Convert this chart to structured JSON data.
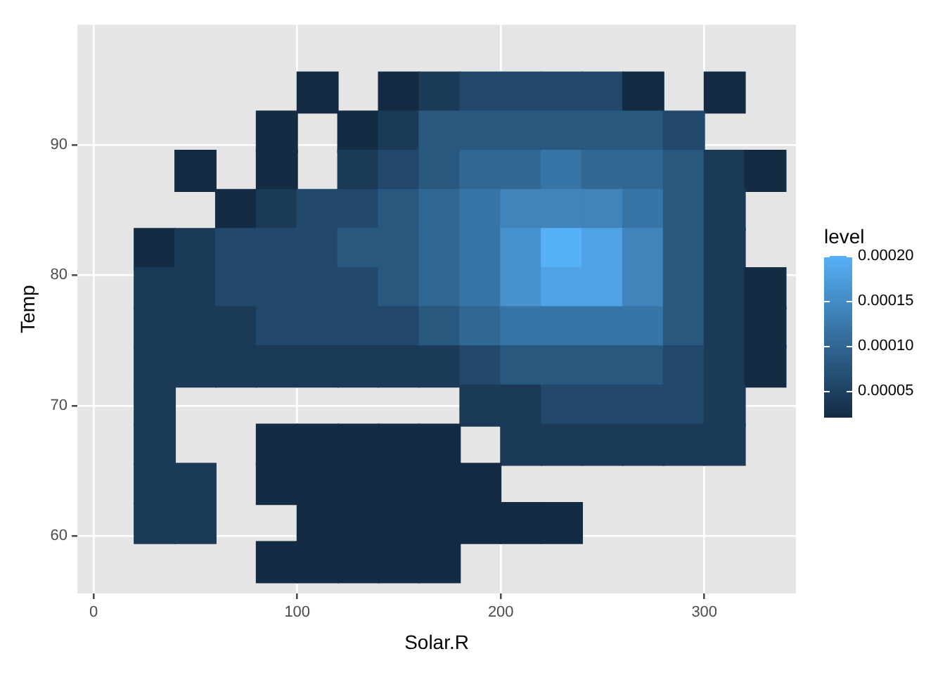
{
  "chart_data": {
    "type": "scatter",
    "xlabel": "Solar.R",
    "ylabel": "Temp",
    "clabel": "level",
    "marker": "square",
    "grid": true,
    "legend": false,
    "xlim": [
      -8,
      345
    ],
    "xticks": [
      0,
      100,
      200,
      300
    ],
    "ylim": [
      55.6,
      99.2
    ],
    "yticks": [
      60,
      70,
      80,
      90
    ],
    "clim": [
      2e-05,
      0.0002
    ],
    "cticks": [
      {
        "value": 5e-05,
        "label": "0.00005"
      },
      {
        "value": 0.0001,
        "label": "0.00010"
      },
      0.00015,
      {
        "value": 0.0002,
        "label": "0.00020"
      }
    ],
    "x": [
      110,
      150,
      170,
      190,
      210,
      230,
      250,
      270,
      310,
      90,
      130,
      150,
      170,
      190,
      210,
      230,
      250,
      270,
      290,
      50,
      90,
      130,
      150,
      170,
      190,
      210,
      230,
      250,
      270,
      290,
      310,
      330,
      70,
      90,
      110,
      130,
      150,
      170,
      190,
      210,
      230,
      250,
      270,
      290,
      310,
      30,
      50,
      70,
      90,
      110,
      130,
      150,
      170,
      190,
      210,
      230,
      250,
      270,
      290,
      310,
      30,
      50,
      70,
      90,
      110,
      130,
      150,
      170,
      190,
      210,
      230,
      250,
      270,
      290,
      310,
      330,
      30,
      50,
      70,
      90,
      110,
      130,
      150,
      170,
      190,
      210,
      230,
      250,
      270,
      290,
      310,
      330,
      30,
      50,
      70,
      90,
      110,
      130,
      150,
      170,
      190,
      210,
      230,
      250,
      270,
      290,
      310,
      330,
      30,
      190,
      210,
      230,
      250,
      270,
      290,
      310,
      30,
      90,
      110,
      130,
      150,
      170,
      210,
      230,
      250,
      270,
      290,
      310,
      30,
      50,
      90,
      110,
      130,
      150,
      170,
      190,
      30,
      50,
      110,
      130,
      150,
      170,
      190,
      210,
      230,
      90,
      110,
      130,
      150,
      170
    ],
    "values": [
      94,
      94,
      94,
      94,
      94,
      94,
      94,
      94,
      94,
      91,
      91,
      91,
      91,
      91,
      91,
      91,
      91,
      91,
      91,
      88,
      88,
      88,
      88,
      88,
      88,
      88,
      88,
      88,
      88,
      88,
      88,
      88,
      85,
      85,
      85,
      85,
      85,
      85,
      85,
      85,
      85,
      85,
      85,
      85,
      85,
      82,
      82,
      82,
      82,
      82,
      82,
      82,
      82,
      82,
      82,
      82,
      82,
      82,
      82,
      82,
      79,
      79,
      79,
      79,
      79,
      79,
      79,
      79,
      79,
      79,
      79,
      79,
      79,
      79,
      79,
      79,
      76,
      76,
      76,
      76,
      76,
      76,
      76,
      76,
      76,
      76,
      76,
      76,
      76,
      76,
      76,
      76,
      73,
      73,
      73,
      73,
      73,
      73,
      73,
      73,
      73,
      73,
      73,
      73,
      73,
      73,
      73,
      73,
      70,
      70,
      70,
      70,
      70,
      70,
      70,
      70,
      67,
      67,
      67,
      67,
      67,
      67,
      67,
      67,
      67,
      67,
      67,
      67,
      64,
      64,
      64,
      64,
      64,
      64,
      64,
      64,
      61,
      61,
      61,
      61,
      61,
      61,
      61,
      61,
      61,
      58,
      58,
      58,
      58,
      58
    ],
    "cvalues": [
      2e-05,
      2e-05,
      4e-05,
      6e-05,
      6e-05,
      6e-05,
      6e-05,
      2e-05,
      2e-05,
      2e-05,
      2e-05,
      4e-05,
      8e-05,
      8e-05,
      8e-05,
      8e-05,
      8e-05,
      8e-05,
      6e-05,
      2e-05,
      2e-05,
      4e-05,
      6e-05,
      8e-05,
      0.0001,
      0.0001,
      0.00012,
      0.0001,
      0.0001,
      8e-05,
      4e-05,
      2e-05,
      2e-05,
      4e-05,
      6e-05,
      6e-05,
      8e-05,
      0.0001,
      0.00012,
      0.00014,
      0.00014,
      0.00014,
      0.00012,
      8e-05,
      4e-05,
      2e-05,
      4e-05,
      6e-05,
      6e-05,
      6e-05,
      8e-05,
      8e-05,
      0.0001,
      0.00012,
      0.00016,
      0.0002,
      0.00018,
      0.00014,
      8e-05,
      4e-05,
      4e-05,
      4e-05,
      6e-05,
      6e-05,
      6e-05,
      6e-05,
      8e-05,
      0.0001,
      0.00012,
      0.00016,
      0.00018,
      0.00018,
      0.00014,
      8e-05,
      4e-05,
      2e-05,
      4e-05,
      4e-05,
      4e-05,
      6e-05,
      6e-05,
      6e-05,
      6e-05,
      8e-05,
      0.0001,
      0.00012,
      0.00012,
      0.00012,
      0.00012,
      8e-05,
      4e-05,
      2e-05,
      4e-05,
      4e-05,
      4e-05,
      4e-05,
      4e-05,
      4e-05,
      4e-05,
      4e-05,
      6e-05,
      8e-05,
      8e-05,
      8e-05,
      8e-05,
      6e-05,
      4e-05,
      2e-05,
      4e-05,
      4e-05,
      4e-05,
      6e-05,
      6e-05,
      6e-05,
      6e-05,
      4e-05,
      4e-05,
      2e-05,
      2e-05,
      2e-05,
      2e-05,
      2e-05,
      4e-05,
      4e-05,
      4e-05,
      4e-05,
      4e-05,
      4e-05,
      4e-05,
      4e-05,
      2e-05,
      2e-05,
      2e-05,
      2e-05,
      2e-05,
      2e-05,
      4e-05,
      4e-05,
      2e-05,
      2e-05,
      2e-05,
      2e-05,
      2e-05,
      2e-05,
      2e-05,
      2e-05,
      2e-05,
      2e-05,
      2e-05,
      2e-05
    ]
  }
}
